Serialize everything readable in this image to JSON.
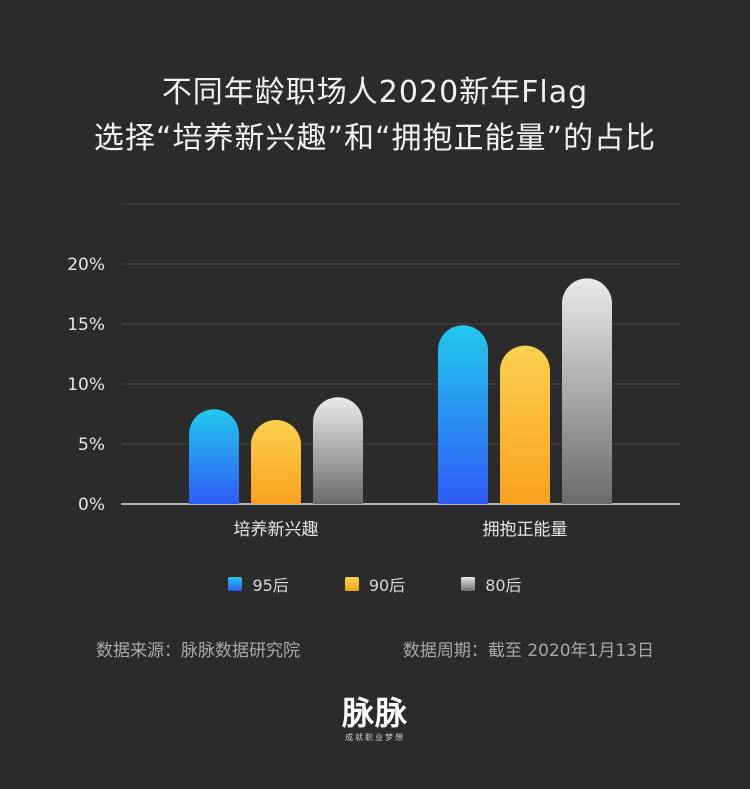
{
  "title": {
    "line1": "不同年龄职场人2020新年Flag",
    "line2": "选择“培养新兴趣”和“拥抱正能量”的占比"
  },
  "chart_data": {
    "type": "bar",
    "categories": [
      "培养新兴趣",
      "拥抱正能量"
    ],
    "series": [
      {
        "name": "95后",
        "values": [
          7.9,
          14.9
        ]
      },
      {
        "name": "90后",
        "values": [
          7.0,
          13.2
        ]
      },
      {
        "name": "80后",
        "values": [
          8.9,
          18.8
        ]
      }
    ],
    "ylim": [
      0,
      25
    ],
    "yticks": [
      0,
      5,
      10,
      15,
      20
    ],
    "ytick_labels": [
      "0%",
      "5%",
      "10%",
      "15%",
      "20%"
    ],
    "grid": true,
    "legend_position": "bottom-center",
    "colors": [
      {
        "top": "#22c8ec",
        "bottom": "#2f5bf7"
      },
      {
        "top": "#fdd04f",
        "bottom": "#f8a21f"
      },
      {
        "top": "#eaeaea",
        "bottom": "#6b6b6b"
      }
    ]
  },
  "source": {
    "left": "数据来源：脉脉数据研究院",
    "right": "数据周期：截至 2020年1月13日"
  },
  "logo": {
    "name": "脉脉",
    "tagline": "成就职业梦想"
  }
}
